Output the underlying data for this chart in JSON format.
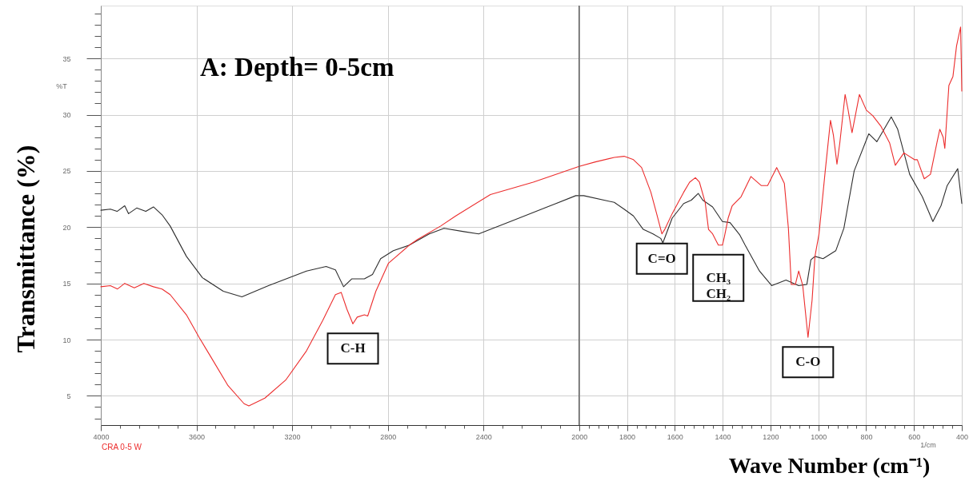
{
  "chart_data": {
    "type": "line",
    "title": "A: Depth= 0-5cm",
    "xlabel": "Wave Number (cm⁻¹)",
    "ylabel": "Transmittance (%)",
    "xlim": [
      4000,
      400
    ],
    "ylim": [
      2.4,
      39.7
    ],
    "xticks": [
      4000,
      {
        "value": 3920,
        "label": null
      },
      {
        "value": 3840,
        "label": null
      },
      {
        "value": 3760,
        "label": null
      },
      {
        "value": 3680,
        "label": null
      },
      3600,
      {
        "value": 3520,
        "label": null
      },
      {
        "value": 3440,
        "label": null
      },
      {
        "value": 3360,
        "label": null
      },
      {
        "value": 3280,
        "label": null
      },
      3200,
      {
        "value": 3120,
        "label": null
      },
      {
        "value": 3040,
        "label": null
      },
      {
        "value": 2960,
        "label": null
      },
      {
        "value": 2880,
        "label": null
      },
      2800,
      {
        "value": 2720,
        "label": null
      },
      {
        "value": 2640,
        "label": null
      },
      {
        "value": 2560,
        "label": null
      },
      {
        "value": 2480,
        "label": null
      },
      2400,
      {
        "value": 2320,
        "label": null
      },
      {
        "value": 2240,
        "label": null
      },
      {
        "value": 2160,
        "label": null
      },
      {
        "value": 2080,
        "label": null
      },
      2000,
      {
        "value": 1960,
        "label": null
      },
      {
        "value": 1920,
        "label": null
      },
      {
        "value": 1880,
        "label": null
      },
      {
        "value": 1840,
        "label": null
      },
      1800,
      {
        "value": 1760,
        "label": null
      },
      {
        "value": 1720,
        "label": null
      },
      {
        "value": 1680,
        "label": null
      },
      {
        "value": 1640,
        "label": null
      },
      1600,
      {
        "value": 1560,
        "label": null
      },
      {
        "value": 1520,
        "label": null
      },
      {
        "value": 1480,
        "label": null
      },
      {
        "value": 1440,
        "label": null
      },
      1400,
      {
        "value": 1360,
        "label": null
      },
      {
        "value": 1320,
        "label": null
      },
      {
        "value": 1280,
        "label": null
      },
      {
        "value": 1240,
        "label": null
      },
      1200,
      {
        "value": 1160,
        "label": null
      },
      {
        "value": 1120,
        "label": null
      },
      {
        "value": 1080,
        "label": null
      },
      {
        "value": 1040,
        "label": null
      },
      1000,
      {
        "value": 960,
        "label": null
      },
      {
        "value": 920,
        "label": null
      },
      {
        "value": 880,
        "label": null
      },
      {
        "value": 840,
        "label": null
      },
      800,
      {
        "value": 760,
        "label": null
      },
      {
        "value": 720,
        "label": null
      },
      {
        "value": 680,
        "label": null
      },
      {
        "value": 640,
        "label": null
      },
      600,
      {
        "value": 560,
        "label": null
      },
      {
        "value": 520,
        "label": null
      },
      {
        "value": 480,
        "label": null
      },
      {
        "value": 440,
        "label": null
      },
      400
    ],
    "yticks": [
      {
        "value": 3,
        "label": null
      },
      {
        "value": 4,
        "label": null
      },
      5,
      {
        "value": 6,
        "label": null
      },
      {
        "value": 7,
        "label": null
      },
      {
        "value": 8,
        "label": null
      },
      {
        "value": 9,
        "label": null
      },
      10,
      {
        "value": 11,
        "label": null
      },
      {
        "value": 12,
        "label": null
      },
      {
        "value": 13,
        "label": null
      },
      {
        "value": 14,
        "label": null
      },
      15,
      {
        "value": 16,
        "label": null
      },
      {
        "value": 17,
        "label": null
      },
      {
        "value": 18,
        "label": null
      },
      {
        "value": 19,
        "label": null
      },
      20,
      {
        "value": 21,
        "label": null
      },
      {
        "value": 22,
        "label": null
      },
      {
        "value": 23,
        "label": null
      },
      {
        "value": 24,
        "label": null
      },
      25,
      {
        "value": 26,
        "label": null
      },
      {
        "value": 27,
        "label": null
      },
      {
        "value": 28,
        "label": null
      },
      {
        "value": 29,
        "label": null
      },
      30,
      {
        "value": 31,
        "label": null
      },
      {
        "value": 32,
        "label": null
      },
      {
        "value": 33,
        "label": null
      },
      {
        "value": 34,
        "label": null
      },
      35,
      {
        "value": 36,
        "label": null
      },
      {
        "value": 37,
        "label": null
      },
      {
        "value": 38,
        "label": null
      },
      {
        "value": 39,
        "label": null
      }
    ],
    "grid": true,
    "legend": "bottom left",
    "ref_lines": [
      {
        "axis": "x",
        "value": 2000,
        "color": "#5a5a5a"
      }
    ],
    "series": [
      {
        "color": "#2e2e2e",
        "x": [
          4000,
          3960,
          3932,
          3900,
          3884,
          3850,
          3812,
          3780,
          3744,
          3710,
          3642,
          3575,
          3488,
          3410,
          3299,
          3140,
          3058,
          3019,
          2985,
          2951,
          2898,
          2864,
          2830,
          2777,
          2710,
          2627,
          2565,
          2482,
          2420,
          2371,
          2275,
          2144,
          2014,
          1981,
          1853,
          1812,
          1773,
          1732,
          1691,
          1659,
          1650,
          1611,
          1563,
          1531,
          1502,
          1483,
          1442,
          1401,
          1369,
          1328,
          1306,
          1246,
          1195,
          1135,
          1082,
          1048,
          1031,
          1014,
          980,
          927,
          893,
          850,
          789,
          755,
          695,
          668,
          618,
          565,
          521,
          487,
          461,
          417,
          400
        ],
        "values": [
          21.5,
          21.6,
          21.4,
          21.9,
          21.2,
          21.7,
          21.4,
          21.8,
          21.1,
          20.1,
          17.4,
          15.5,
          14.3,
          13.8,
          14.8,
          16.1,
          16.5,
          16.2,
          14.7,
          15.4,
          15.4,
          15.8,
          17.2,
          17.9,
          18.4,
          19.4,
          19.9,
          19.6,
          19.4,
          19.8,
          20.6,
          21.7,
          22.8,
          22.8,
          22.2,
          21.6,
          21.0,
          19.8,
          19.4,
          19.0,
          18.6,
          20.8,
          22.1,
          22.4,
          23.0,
          22.4,
          21.8,
          20.5,
          20.4,
          19.3,
          18.4,
          16.1,
          14.8,
          15.3,
          14.8,
          14.9,
          17.1,
          17.4,
          17.2,
          17.9,
          19.9,
          25.0,
          28.3,
          27.6,
          29.8,
          28.7,
          24.7,
          22.7,
          20.5,
          21.9,
          23.7,
          25.2,
          22.1
        ]
      },
      {
        "name": "CRA 0-5 W",
        "color": "#ec2d2d",
        "x": [
          4000,
          3960,
          3930,
          3900,
          3860,
          3820,
          3780,
          3744,
          3710,
          3642,
          3589,
          3541,
          3468,
          3401,
          3381,
          3314,
          3227,
          3140,
          3072,
          3019,
          2995,
          2971,
          2946,
          2928,
          2898,
          2884,
          2850,
          2797,
          2710,
          2676,
          2579,
          2516,
          2371,
          2192,
          2000,
          1932,
          1853,
          1812,
          1773,
          1739,
          1700,
          1676,
          1654,
          1642,
          1611,
          1563,
          1538,
          1514,
          1497,
          1473,
          1459,
          1442,
          1418,
          1401,
          1393,
          1377,
          1360,
          1323,
          1282,
          1239,
          1212,
          1174,
          1142,
          1125,
          1113,
          1096,
          1082,
          1065,
          1043,
          1026,
          1014,
          997,
          971,
          949,
          937,
          922,
          910,
          888,
          876,
          859,
          828,
          799,
          772,
          739,
          702,
          678,
          642,
          598,
          586,
          557,
          531,
          504,
          492,
          478,
          471,
          454,
          437,
          422,
          405,
          402,
          400
        ],
        "values": [
          14.7,
          14.8,
          14.5,
          15.0,
          14.6,
          15.0,
          14.7,
          14.5,
          14.0,
          12.2,
          10.2,
          8.5,
          5.9,
          4.3,
          4.1,
          4.8,
          6.4,
          9.0,
          11.7,
          14.0,
          14.2,
          12.7,
          11.4,
          12.0,
          12.2,
          12.1,
          14.3,
          16.8,
          18.4,
          18.9,
          20.1,
          21.0,
          22.9,
          24.0,
          25.4,
          25.8,
          26.2,
          26.3,
          26.0,
          25.3,
          23.1,
          21.2,
          19.4,
          19.8,
          21.2,
          23.1,
          24.0,
          24.4,
          24.0,
          22.2,
          19.8,
          19.4,
          18.4,
          18.4,
          19.1,
          20.8,
          21.9,
          22.7,
          24.5,
          23.7,
          23.7,
          25.3,
          23.9,
          19.9,
          14.9,
          14.9,
          16.1,
          14.8,
          10.2,
          13.5,
          17.4,
          19.4,
          25.0,
          29.5,
          28.2,
          25.6,
          27.5,
          31.8,
          30.5,
          28.4,
          31.8,
          30.4,
          29.9,
          29.0,
          27.5,
          25.5,
          26.6,
          26.0,
          26.0,
          24.3,
          24.7,
          27.5,
          28.7,
          28.0,
          27.0,
          32.6,
          33.4,
          36.1,
          37.8,
          34.6,
          32.1
        ]
      }
    ],
    "annotations": [
      {
        "text": "C-H",
        "x": 2946,
        "y": 11.4
      },
      {
        "text": "C=O",
        "x": 1654,
        "y": 19.4
      },
      {
        "text": "CH₃\nCH₂",
        "x": 1418,
        "y": 18.4
      },
      {
        "text": "C-O",
        "x": 1043,
        "y": 10.2
      },
      "%T",
      "1/cm"
    ]
  }
}
